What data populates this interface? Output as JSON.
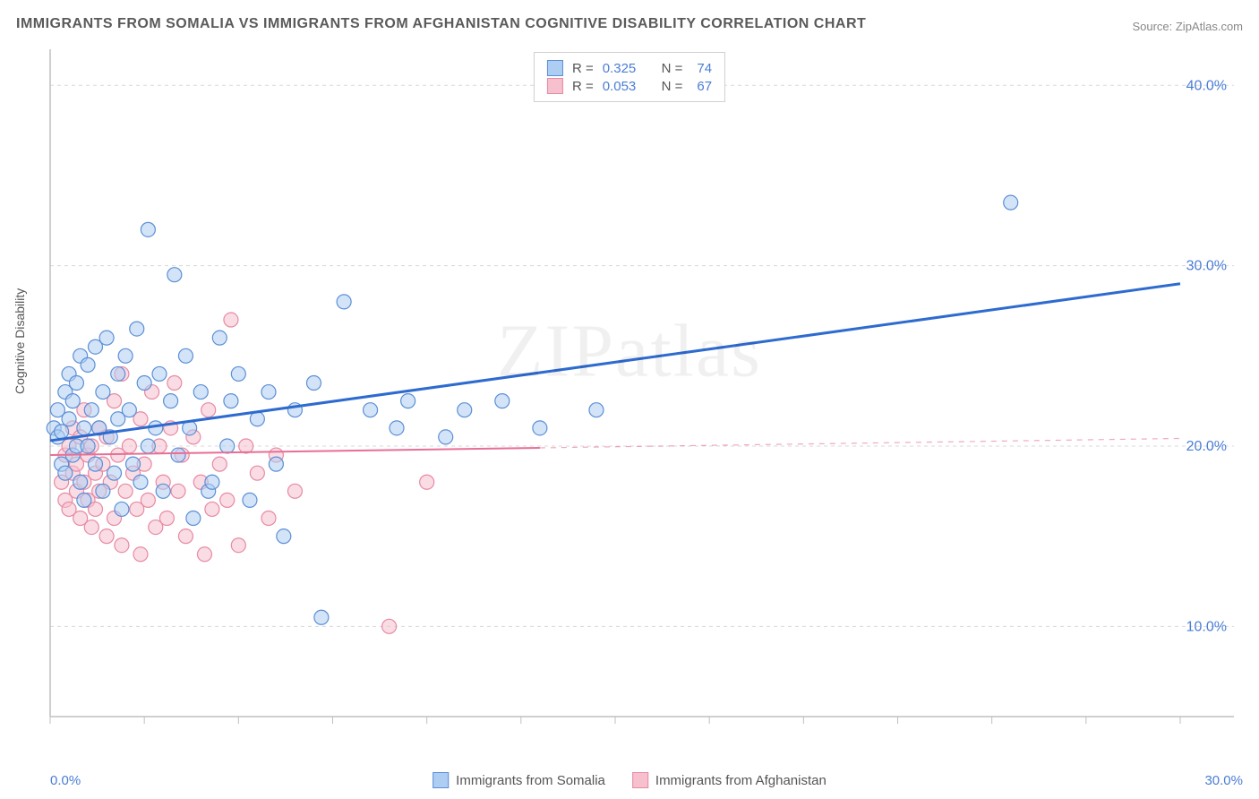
{
  "title": "IMMIGRANTS FROM SOMALIA VS IMMIGRANTS FROM AFGHANISTAN COGNITIVE DISABILITY CORRELATION CHART",
  "source": "Source: ZipAtlas.com",
  "y_axis_label": "Cognitive Disability",
  "watermark": "ZIPatlas",
  "chart": {
    "type": "scatter",
    "xlim": [
      0,
      30
    ],
    "ylim": [
      5,
      42
    ],
    "y_ticks": [
      10.0,
      20.0,
      30.0,
      40.0
    ],
    "y_tick_labels": [
      "10.0%",
      "20.0%",
      "30.0%",
      "40.0%"
    ],
    "x_tick_labels": {
      "min": "0.0%",
      "max": "30.0%"
    },
    "grid_color": "#d8d8d8",
    "axis_color": "#bfbfbf",
    "background_color": "#ffffff",
    "tick_label_color": "#4a7dd6",
    "marker_radius": 8,
    "marker_opacity": 0.55,
    "series": [
      {
        "name": "Immigrants from Somalia",
        "fill": "#aecdf2",
        "stroke": "#5b8fd6",
        "line_color": "#2e6bcf",
        "line_width": 3,
        "r": 0.325,
        "n": 74,
        "regression": {
          "x1": 0,
          "y1": 20.3,
          "x2": 30,
          "y2": 29.0,
          "dash_after_x": 30
        },
        "points": [
          [
            0.1,
            21.0
          ],
          [
            0.2,
            20.5
          ],
          [
            0.2,
            22.0
          ],
          [
            0.3,
            19.0
          ],
          [
            0.3,
            20.8
          ],
          [
            0.4,
            23.0
          ],
          [
            0.4,
            18.5
          ],
          [
            0.5,
            21.5
          ],
          [
            0.5,
            24.0
          ],
          [
            0.6,
            22.5
          ],
          [
            0.6,
            19.5
          ],
          [
            0.7,
            23.5
          ],
          [
            0.7,
            20.0
          ],
          [
            0.8,
            25.0
          ],
          [
            0.8,
            18.0
          ],
          [
            0.9,
            21.0
          ],
          [
            0.9,
            17.0
          ],
          [
            1.0,
            24.5
          ],
          [
            1.0,
            20.0
          ],
          [
            1.1,
            22.0
          ],
          [
            1.2,
            19.0
          ],
          [
            1.2,
            25.5
          ],
          [
            1.3,
            21.0
          ],
          [
            1.4,
            17.5
          ],
          [
            1.4,
            23.0
          ],
          [
            1.5,
            26.0
          ],
          [
            1.6,
            20.5
          ],
          [
            1.7,
            18.5
          ],
          [
            1.8,
            24.0
          ],
          [
            1.8,
            21.5
          ],
          [
            1.9,
            16.5
          ],
          [
            2.0,
            25.0
          ],
          [
            2.1,
            22.0
          ],
          [
            2.2,
            19.0
          ],
          [
            2.3,
            26.5
          ],
          [
            2.4,
            18.0
          ],
          [
            2.5,
            23.5
          ],
          [
            2.6,
            20.0
          ],
          [
            2.6,
            32.0
          ],
          [
            2.8,
            21.0
          ],
          [
            2.9,
            24.0
          ],
          [
            3.0,
            17.5
          ],
          [
            3.2,
            22.5
          ],
          [
            3.3,
            29.5
          ],
          [
            3.4,
            19.5
          ],
          [
            3.6,
            25.0
          ],
          [
            3.7,
            21.0
          ],
          [
            3.8,
            16.0
          ],
          [
            4.0,
            23.0
          ],
          [
            4.2,
            17.5
          ],
          [
            4.3,
            18.0
          ],
          [
            4.5,
            26.0
          ],
          [
            4.7,
            20.0
          ],
          [
            4.8,
            22.5
          ],
          [
            5.0,
            24.0
          ],
          [
            5.3,
            17.0
          ],
          [
            5.5,
            21.5
          ],
          [
            5.8,
            23.0
          ],
          [
            6.0,
            19.0
          ],
          [
            6.2,
            15.0
          ],
          [
            6.5,
            22.0
          ],
          [
            7.0,
            23.5
          ],
          [
            7.2,
            10.5
          ],
          [
            7.8,
            28.0
          ],
          [
            8.5,
            22.0
          ],
          [
            9.2,
            21.0
          ],
          [
            9.5,
            22.5
          ],
          [
            10.5,
            20.5
          ],
          [
            11.0,
            22.0
          ],
          [
            12.0,
            22.5
          ],
          [
            13.0,
            21.0
          ],
          [
            14.5,
            22.0
          ],
          [
            25.5,
            33.5
          ]
        ]
      },
      {
        "name": "Immigrants from Afghanistan",
        "fill": "#f6c0ce",
        "stroke": "#e78aa3",
        "line_color": "#e76f95",
        "line_width": 2,
        "r": 0.053,
        "n": 67,
        "regression": {
          "x1": 0,
          "y1": 19.5,
          "x2": 13,
          "y2": 19.9,
          "dash_after_x": 13
        },
        "points": [
          [
            0.3,
            18.0
          ],
          [
            0.4,
            19.5
          ],
          [
            0.4,
            17.0
          ],
          [
            0.5,
            20.0
          ],
          [
            0.5,
            16.5
          ],
          [
            0.6,
            18.5
          ],
          [
            0.6,
            21.0
          ],
          [
            0.7,
            17.5
          ],
          [
            0.7,
            19.0
          ],
          [
            0.8,
            20.5
          ],
          [
            0.8,
            16.0
          ],
          [
            0.9,
            18.0
          ],
          [
            0.9,
            22.0
          ],
          [
            1.0,
            17.0
          ],
          [
            1.0,
            19.5
          ],
          [
            1.1,
            15.5
          ],
          [
            1.1,
            20.0
          ],
          [
            1.2,
            18.5
          ],
          [
            1.2,
            16.5
          ],
          [
            1.3,
            21.0
          ],
          [
            1.3,
            17.5
          ],
          [
            1.4,
            19.0
          ],
          [
            1.5,
            15.0
          ],
          [
            1.5,
            20.5
          ],
          [
            1.6,
            18.0
          ],
          [
            1.7,
            22.5
          ],
          [
            1.7,
            16.0
          ],
          [
            1.8,
            19.5
          ],
          [
            1.9,
            14.5
          ],
          [
            1.9,
            24.0
          ],
          [
            2.0,
            17.5
          ],
          [
            2.1,
            20.0
          ],
          [
            2.2,
            18.5
          ],
          [
            2.3,
            16.5
          ],
          [
            2.4,
            21.5
          ],
          [
            2.4,
            14.0
          ],
          [
            2.5,
            19.0
          ],
          [
            2.6,
            17.0
          ],
          [
            2.7,
            23.0
          ],
          [
            2.8,
            15.5
          ],
          [
            2.9,
            20.0
          ],
          [
            3.0,
            18.0
          ],
          [
            3.1,
            16.0
          ],
          [
            3.2,
            21.0
          ],
          [
            3.3,
            23.5
          ],
          [
            3.4,
            17.5
          ],
          [
            3.5,
            19.5
          ],
          [
            3.6,
            15.0
          ],
          [
            3.8,
            20.5
          ],
          [
            4.0,
            18.0
          ],
          [
            4.1,
            14.0
          ],
          [
            4.2,
            22.0
          ],
          [
            4.3,
            16.5
          ],
          [
            4.5,
            19.0
          ],
          [
            4.7,
            17.0
          ],
          [
            4.8,
            27.0
          ],
          [
            5.0,
            14.5
          ],
          [
            5.2,
            20.0
          ],
          [
            5.5,
            18.5
          ],
          [
            5.8,
            16.0
          ],
          [
            6.0,
            19.5
          ],
          [
            6.5,
            17.5
          ],
          [
            9.0,
            10.0
          ],
          [
            10.0,
            18.0
          ]
        ]
      }
    ],
    "legend_labels": {
      "r_label": "R =",
      "n_label": "N ="
    }
  }
}
